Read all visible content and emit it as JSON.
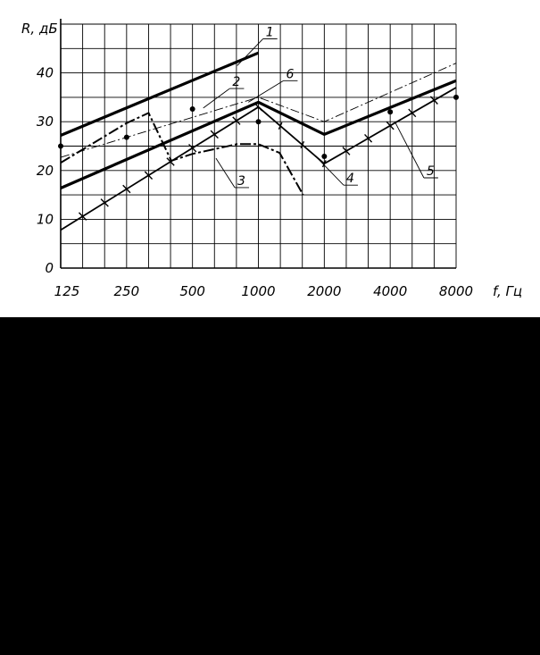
{
  "chart_data": {
    "type": "line",
    "ylabel": "R, дБ",
    "xlabel": "f, Гц",
    "x_scale": "log2",
    "x_ticks": [
      125,
      250,
      500,
      1000,
      2000,
      4000,
      8000
    ],
    "x_tick_labels": [
      "125",
      "250",
      "500",
      "1000",
      "2000",
      "4000",
      "8000"
    ],
    "xlim": [
      125,
      8000
    ],
    "y_ticks": [
      0,
      10,
      20,
      30,
      40
    ],
    "y_tick_labels": [
      "0",
      "10",
      "20",
      "30",
      "40"
    ],
    "ylim": [
      0,
      50
    ],
    "grid": true,
    "series": [
      {
        "name": "1",
        "style": "thick-solid",
        "x": [
          125,
          1000
        ],
        "y": [
          27.2,
          44.1
        ]
      },
      {
        "name": "2",
        "style": "dash-dot-thin",
        "x": [
          125,
          1000,
          2000,
          8000
        ],
        "y": [
          22.7,
          35.0,
          30.0,
          42.0
        ]
      },
      {
        "name": "3",
        "style": "dash-dot-thick",
        "x": [
          125,
          250,
          315,
          400,
          500,
          800,
          1000,
          1250,
          1600
        ],
        "y": [
          21.6,
          29.7,
          31.8,
          22.0,
          23.4,
          25.4,
          25.4,
          23.6,
          15.0
        ]
      },
      {
        "name": "4",
        "style": "solid-ticked",
        "x": [
          125,
          1000,
          2000,
          8000
        ],
        "y": [
          7.8,
          33.0,
          21.4,
          37.0
        ]
      },
      {
        "name": "5",
        "style": "points",
        "x": [
          125,
          250,
          500,
          1000,
          2000,
          4000,
          8000
        ],
        "y": [
          25.0,
          26.8,
          32.6,
          30.0,
          22.9,
          32.0,
          35.0
        ]
      },
      {
        "name": "6",
        "style": "thick-solid",
        "x": [
          125,
          1000,
          2000,
          8000
        ],
        "y": [
          16.4,
          34.0,
          27.4,
          38.4
        ]
      }
    ],
    "callouts": [
      {
        "label": "1",
        "anchor": [
          800,
          41.5
        ],
        "text_at": [
          1050,
          47.0
        ]
      },
      {
        "label": "2",
        "anchor": [
          560,
          32.8
        ],
        "text_at": [
          740,
          36.8
        ]
      },
      {
        "label": "6",
        "anchor": [
          900,
          34.0
        ],
        "text_at": [
          1300,
          38.4
        ]
      },
      {
        "label": "3",
        "anchor": [
          640,
          22.5
        ],
        "text_at": [
          780,
          16.5
        ]
      },
      {
        "label": "4",
        "anchor": [
          1800,
          23.2
        ],
        "text_at": [
          2450,
          17.0
        ]
      },
      {
        "label": "5",
        "anchor": [
          4200,
          30.0
        ],
        "text_at": [
          5700,
          18.5
        ]
      }
    ]
  }
}
